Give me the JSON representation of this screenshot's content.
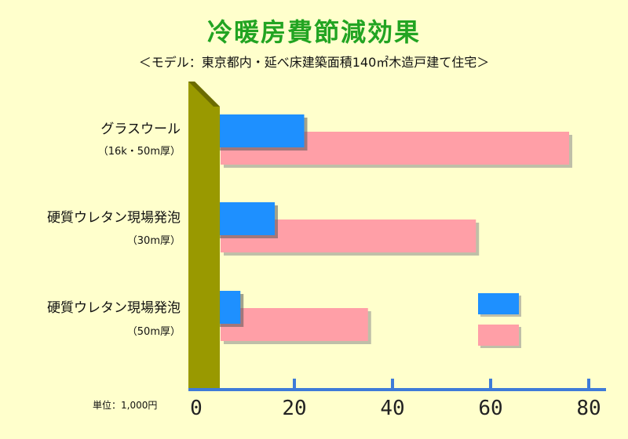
{
  "title": "冷暖房費節減効果",
  "subtitle": "＜モデル：東京都内・延べ床建築面積140㎡木造戸建て住宅＞",
  "unit_label": "単位：1,000円",
  "colors": {
    "background": "#FFFFCC",
    "title": "#22A422",
    "blue": "#1E90FF",
    "pink": "#FF9FA7",
    "axis_wall": "#999900",
    "axis": "#3F7BD8"
  },
  "chart_data": {
    "type": "bar",
    "orientation": "horizontal",
    "categories": [
      {
        "label": "グラスウール",
        "sub": "（16k・50m厚）"
      },
      {
        "label": "硬質ウレタン現場発泡",
        "sub": "（30m厚）"
      },
      {
        "label": "硬質ウレタン現場発泡",
        "sub": "（50m厚）"
      }
    ],
    "series": [
      {
        "color": "#1E90FF",
        "values": [
          22,
          16,
          9
        ]
      },
      {
        "color": "#FF9FA7",
        "values": [
          76,
          57,
          35
        ]
      }
    ],
    "x_ticks": [
      "0",
      "20",
      "40",
      "60",
      "80"
    ],
    "xlim": [
      0,
      80
    ],
    "legend_position": "bottom-right",
    "grid": false
  }
}
